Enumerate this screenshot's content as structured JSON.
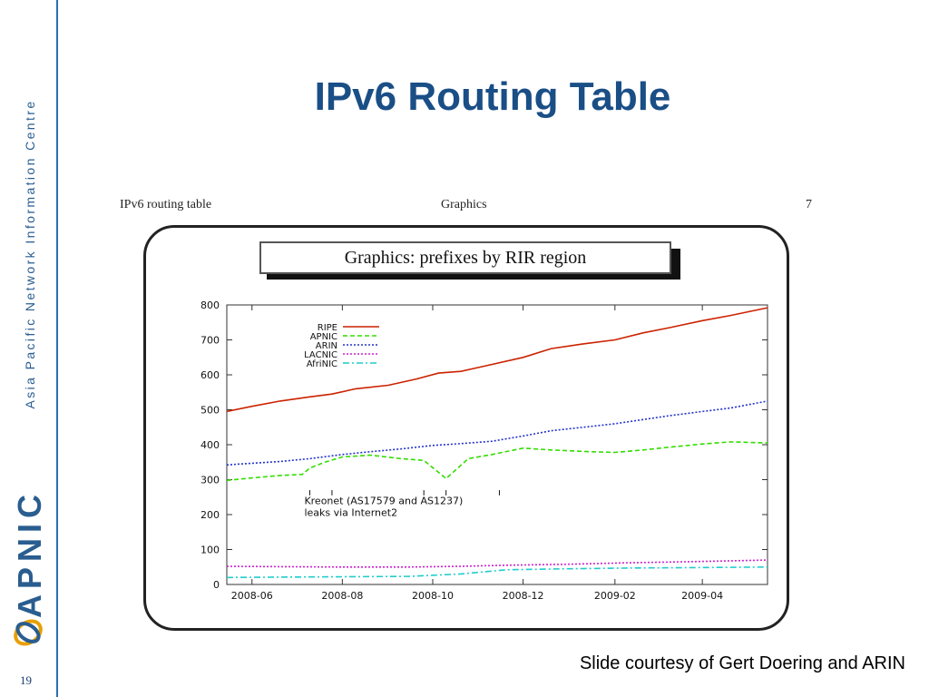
{
  "sidebar": {
    "org_name": "Asia Pacific Network Information Centre",
    "logo_text": "APNIC",
    "page_number": "19"
  },
  "slide_title": "IPv6 Routing Table",
  "embedded": {
    "header_left": "IPv6 routing table",
    "header_center": "Graphics",
    "header_right": "7",
    "graphic_title": "Graphics: prefixes by RIR region"
  },
  "credit": "Slide courtesy of Gert Doering and ARIN",
  "chart_data": {
    "type": "line",
    "title": "",
    "xlabel": "",
    "ylabel": "",
    "x_ticks": [
      "2008-06",
      "2008-08",
      "2008-10",
      "2008-12",
      "2009-02",
      "2009-04"
    ],
    "y_ticks": [
      0,
      100,
      200,
      300,
      400,
      500,
      600,
      700,
      800
    ],
    "ylim": [
      0,
      800
    ],
    "xlim": [
      "2008-05-15",
      "2009-05-15"
    ],
    "legend_position": "top-left",
    "grid": false,
    "annotation": [
      "Kreonet (AS17579 and AS1237)",
      "leaks via Internet2"
    ],
    "annotation_markers": [
      "2008-07-10",
      "2008-07-25",
      "2008-09-25",
      "2008-10-10",
      "2008-11-15"
    ],
    "series": [
      {
        "name": "RIPE",
        "color": "#cc2200",
        "style": "solid",
        "points": [
          [
            "2008-05-15",
            495
          ],
          [
            "2008-06-01",
            510
          ],
          [
            "2008-06-20",
            525
          ],
          [
            "2008-07-10",
            537
          ],
          [
            "2008-07-25",
            545
          ],
          [
            "2008-08-10",
            560
          ],
          [
            "2008-09-01",
            570
          ],
          [
            "2008-09-20",
            588
          ],
          [
            "2008-10-05",
            605
          ],
          [
            "2008-10-20",
            610
          ],
          [
            "2008-11-05",
            625
          ],
          [
            "2008-12-01",
            650
          ],
          [
            "2008-12-20",
            675
          ],
          [
            "2009-01-10",
            688
          ],
          [
            "2009-02-01",
            700
          ],
          [
            "2009-02-20",
            720
          ],
          [
            "2009-03-10",
            735
          ],
          [
            "2009-04-01",
            755
          ],
          [
            "2009-04-20",
            770
          ],
          [
            "2009-05-15",
            792
          ]
        ]
      },
      {
        "name": "APNIC",
        "color": "#33dd00",
        "style": "dashed",
        "points": [
          [
            "2008-05-15",
            298
          ],
          [
            "2008-06-01",
            305
          ],
          [
            "2008-06-20",
            312
          ],
          [
            "2008-07-05",
            315
          ],
          [
            "2008-07-10",
            333
          ],
          [
            "2008-07-20",
            350
          ],
          [
            "2008-08-01",
            365
          ],
          [
            "2008-08-20",
            370
          ],
          [
            "2008-09-10",
            360
          ],
          [
            "2008-09-25",
            355
          ],
          [
            "2008-10-10",
            303
          ],
          [
            "2008-10-25",
            360
          ],
          [
            "2008-11-10",
            372
          ],
          [
            "2008-12-01",
            390
          ],
          [
            "2008-12-20",
            385
          ],
          [
            "2009-01-15",
            380
          ],
          [
            "2009-02-01",
            378
          ],
          [
            "2009-02-20",
            385
          ],
          [
            "2009-03-10",
            393
          ],
          [
            "2009-04-01",
            402
          ],
          [
            "2009-04-20",
            408
          ],
          [
            "2009-05-15",
            405
          ]
        ]
      },
      {
        "name": "ARIN",
        "color": "#2233cc",
        "style": "dotted",
        "points": [
          [
            "2008-05-15",
            342
          ],
          [
            "2008-06-01",
            347
          ],
          [
            "2008-06-20",
            352
          ],
          [
            "2008-07-10",
            360
          ],
          [
            "2008-08-01",
            372
          ],
          [
            "2008-08-20",
            380
          ],
          [
            "2008-09-10",
            388
          ],
          [
            "2008-10-01",
            398
          ],
          [
            "2008-10-20",
            403
          ],
          [
            "2008-11-10",
            410
          ],
          [
            "2008-12-01",
            425
          ],
          [
            "2008-12-20",
            440
          ],
          [
            "2009-01-15",
            452
          ],
          [
            "2009-02-01",
            460
          ],
          [
            "2009-02-20",
            472
          ],
          [
            "2009-03-10",
            483
          ],
          [
            "2009-04-01",
            495
          ],
          [
            "2009-04-20",
            505
          ],
          [
            "2009-05-15",
            525
          ]
        ]
      },
      {
        "name": "LACNIC",
        "color": "#cc22cc",
        "style": "dotted",
        "points": [
          [
            "2008-05-15",
            52
          ],
          [
            "2008-06-20",
            51
          ],
          [
            "2008-08-01",
            50
          ],
          [
            "2008-09-15",
            50
          ],
          [
            "2008-10-20",
            52
          ],
          [
            "2008-11-20",
            55
          ],
          [
            "2009-01-01",
            58
          ],
          [
            "2009-02-10",
            62
          ],
          [
            "2009-03-20",
            65
          ],
          [
            "2009-05-15",
            70
          ]
        ]
      },
      {
        "name": "AfriNIC",
        "color": "#22cccc",
        "style": "dashdot",
        "points": [
          [
            "2008-05-15",
            20
          ],
          [
            "2008-06-20",
            21
          ],
          [
            "2008-08-01",
            22
          ],
          [
            "2008-09-15",
            23
          ],
          [
            "2008-10-20",
            30
          ],
          [
            "2008-11-20",
            42
          ],
          [
            "2009-01-01",
            45
          ],
          [
            "2009-02-10",
            47
          ],
          [
            "2009-03-20",
            48
          ],
          [
            "2009-05-15",
            50
          ]
        ]
      }
    ]
  }
}
